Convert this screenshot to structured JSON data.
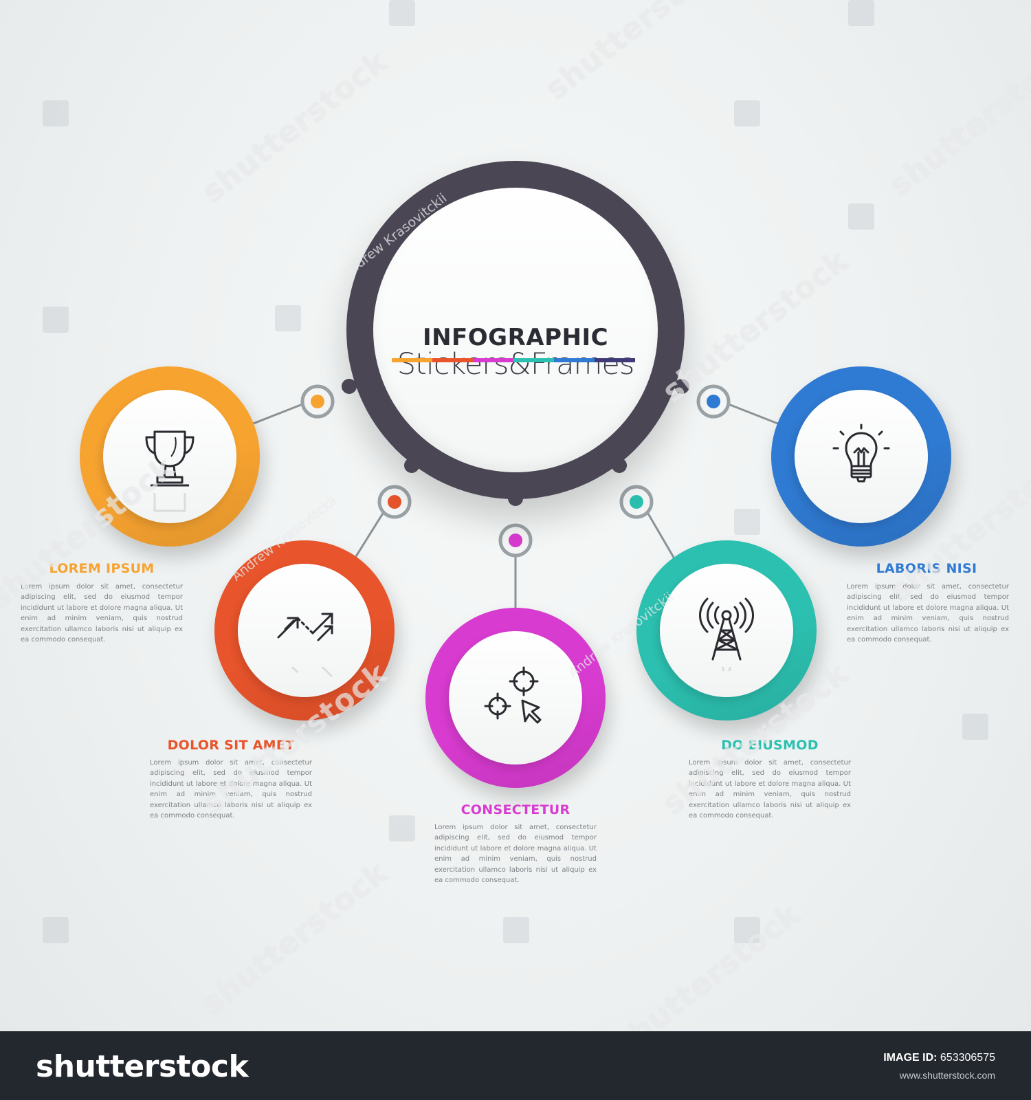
{
  "hub": {
    "title": "INFOGRAPHIC",
    "subtitle": "Stickers&Frames",
    "rainbow_colors": [
      "#f7a330",
      "#e8542b",
      "#d83bd0",
      "#2cc0b0",
      "#2f7ad2",
      "#3f3a78"
    ]
  },
  "nodes": [
    {
      "label": "LOREM IPSUM",
      "icon": "trophy-icon",
      "color": "#f7a330",
      "desc": "Lorem ipsum dolor sit amet, consectetur adipiscing elit, sed do eiusmod tempor incididunt ut labore et dolore magna aliqua. Ut enim ad minim veniam, quis nostrud exercitation ullamco laboris nisi ut aliquip ex ea commodo consequat."
    },
    {
      "label": "DOLOR SIT AMET",
      "icon": "growth-arrows-icon",
      "color": "#e8542b",
      "desc": "Lorem ipsum dolor sit amet, consectetur adipiscing elit, sed do eiusmod tempor incididunt ut labore et dolore magna aliqua. Ut enim ad minim veniam, quis nostrud exercitation ullamco laboris nisi ut aliquip ex ea commodo consequat."
    },
    {
      "label": "CONSECTETUR",
      "icon": "targets-cursor-icon",
      "color": "#d83bd0",
      "desc": "Lorem ipsum dolor sit amet, consectetur adipiscing elit, sed do eiusmod tempor incididunt ut labore et dolore magna aliqua. Ut enim ad minim veniam, quis nostrud exercitation ullamco laboris nisi ut aliquip ex ea commodo consequat."
    },
    {
      "label": "DO EIUSMOD",
      "icon": "radio-tower-icon",
      "color": "#2cc0b0",
      "desc": "Lorem ipsum dolor sit amet, consectetur adipiscing elit, sed do eiusmod tempor incididunt ut labore et dolore magna aliqua. Ut enim ad minim veniam, quis nostrud exercitation ullamco laboris nisi ut aliquip ex ea commodo consequat."
    },
    {
      "label": "LABORIS NISI",
      "icon": "lightbulb-icon",
      "color": "#2f7ad2",
      "desc": "Lorem ipsum dolor sit amet, consectetur adipiscing elit, sed do eiusmod tempor incididunt ut labore et dolore magna aliqua. Ut enim ad minim veniam, quis nostrud exercitation ullamco laboris nisi ut aliquip ex ea commodo consequat."
    }
  ],
  "watermark": {
    "text": "shutterstock",
    "author": "Andrew Krasovitckii"
  },
  "footer": {
    "logo": "shutterstock",
    "image_id_label": "IMAGE ID:",
    "image_id": "653306575",
    "url": "www.shutterstock.com"
  }
}
